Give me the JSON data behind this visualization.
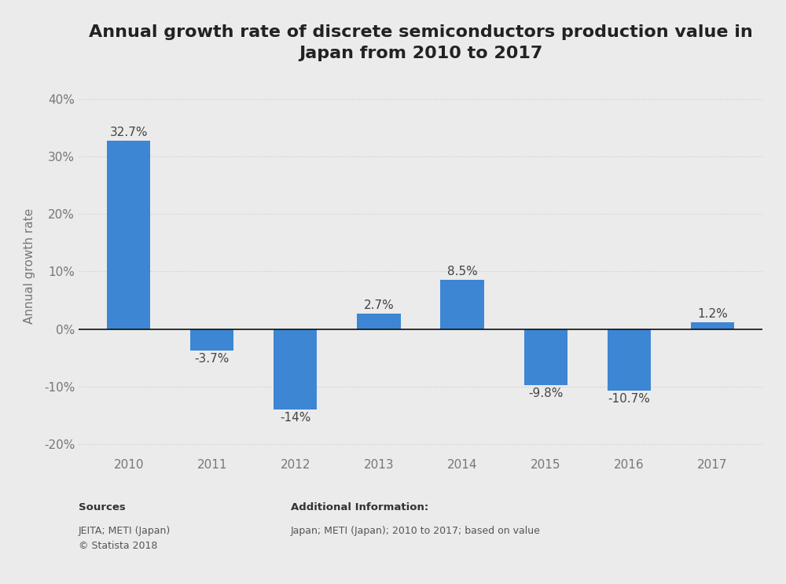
{
  "title": "Annual growth rate of discrete semiconductors production value in\nJapan from 2010 to 2017",
  "ylabel": "Annual growth rate",
  "years": [
    "2010",
    "2011",
    "2012",
    "2013",
    "2014",
    "2015",
    "2016",
    "2017"
  ],
  "values": [
    32.7,
    -3.7,
    -14.0,
    2.7,
    8.5,
    -9.8,
    -10.7,
    1.2
  ],
  "labels": [
    "32.7%",
    "-3.7%",
    "-14%",
    "2.7%",
    "8.5%",
    "-9.8%",
    "-10.7%",
    "1.2%"
  ],
  "bar_color": "#3d86d4",
  "ylim": [
    -22,
    44
  ],
  "yticks": [
    -20,
    -10,
    0,
    10,
    20,
    30,
    40
  ],
  "ytick_labels": [
    "-20%",
    "-10%",
    "0%",
    "10%",
    "20%",
    "30%",
    "40%"
  ],
  "background_color": "#ebebeb",
  "plot_bg_color": "#ebebeb",
  "title_fontsize": 16,
  "label_fontsize": 11,
  "tick_fontsize": 11,
  "ylabel_fontsize": 11,
  "sources_label": "Sources",
  "sources_body": "JEITA; METI (Japan)\n© Statista 2018",
  "additional_label": "Additional Information:",
  "additional_body": "Japan; METI (Japan); 2010 to 2017; based on value"
}
